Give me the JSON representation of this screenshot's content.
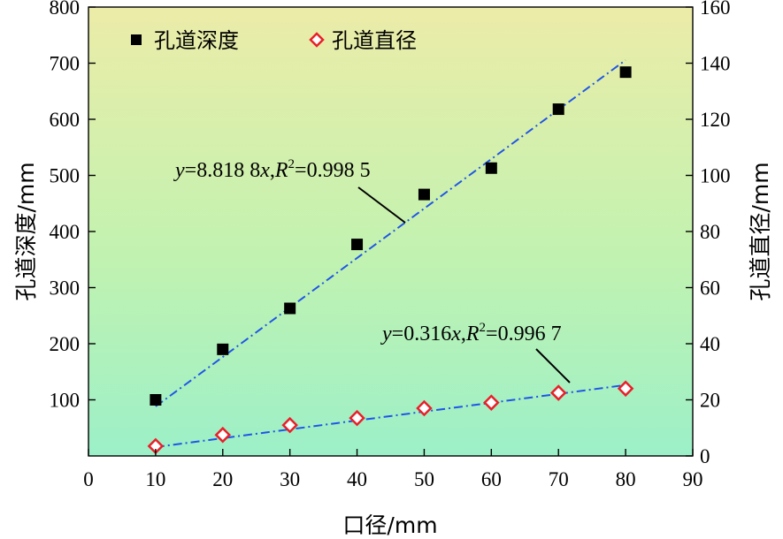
{
  "chart_data": {
    "type": "scatter",
    "x": [
      10,
      20,
      30,
      40,
      50,
      60,
      70,
      80
    ],
    "xlabel": "口径/mm",
    "xlim": [
      0,
      90
    ],
    "x_ticks": [
      "0",
      "10",
      "20",
      "30",
      "40",
      "50",
      "60",
      "70",
      "80",
      "90"
    ],
    "y_left": {
      "label": "孔道深度/mm",
      "lim": [
        0,
        800
      ],
      "ticks": [
        "100",
        "200",
        "300",
        "400",
        "500",
        "600",
        "700",
        "800"
      ]
    },
    "y_right": {
      "label": "孔道直径/mm",
      "lim": [
        0,
        160
      ],
      "ticks": [
        "0",
        "20",
        "40",
        "60",
        "80",
        "100",
        "120",
        "140",
        "160"
      ]
    },
    "series": [
      {
        "name": "孔道深度",
        "axis": "left",
        "marker": "square",
        "color": "#000000",
        "values": [
          100,
          190,
          263,
          377,
          466,
          513,
          618,
          684
        ],
        "fit": {
          "slope": 8.8188,
          "x_range": [
            10,
            80
          ],
          "color": "#1f55e8",
          "label": {
            "y": "y",
            "eq": "=8.818 8",
            "x": "x",
            "sep": ",",
            "R": "R",
            "sup": "2",
            "rest": "=0.998 5"
          }
        }
      },
      {
        "name": "孔道直径",
        "axis": "right",
        "marker": "diamond",
        "color": "#e8202a",
        "values": [
          3.5,
          7.5,
          11,
          13.5,
          17,
          19,
          22.5,
          24
        ],
        "fit": {
          "slope": 0.316,
          "x_range": [
            10,
            80
          ],
          "color": "#1f55e8",
          "label": {
            "y": "y",
            "eq": "=0.316",
            "x": "x",
            "sep": ",",
            "R": "R",
            "sup": "2",
            "rest": "=0.996 7"
          }
        }
      }
    ],
    "background_gradient": [
      "#ececa8",
      "#c2f2b0",
      "#9cf0c8"
    ],
    "legend_position": "top-left",
    "grid": false
  }
}
